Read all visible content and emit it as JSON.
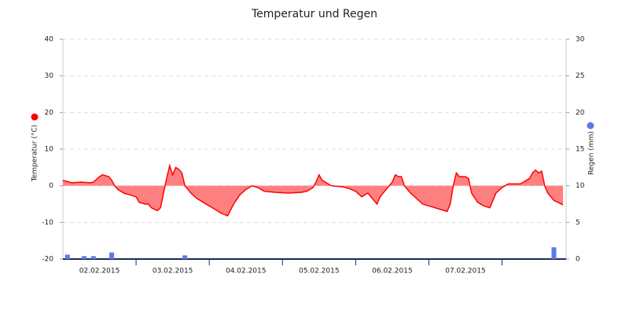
{
  "chart_data": {
    "type": "line",
    "title": "Temperatur und Regen",
    "xlim": [
      0,
      165
    ],
    "xticks": [
      {
        "value": 12,
        "label": "02.02.2015"
      },
      {
        "value": 36,
        "label": "03.02.2015"
      },
      {
        "value": 60,
        "label": "04.02.2015"
      },
      {
        "value": 84,
        "label": "05.02.2015"
      },
      {
        "value": 108,
        "label": "06.02.2015"
      },
      {
        "value": 132,
        "label": "07.02.2015"
      }
    ],
    "ylim": [
      -20,
      40
    ],
    "yticks": [
      -20,
      -10,
      0,
      10,
      20,
      30,
      40
    ],
    "y2lim": [
      0,
      30
    ],
    "y2ticks": [
      0,
      5,
      10,
      15,
      20,
      25,
      30
    ],
    "grid": true,
    "series": [
      {
        "name": "Temperatur (°C)",
        "type": "area",
        "color": "#ff0000",
        "fill": "#ff8080",
        "x": [
          0,
          3,
          6,
          9,
          10,
          12,
          13,
          15,
          16,
          17,
          18,
          20,
          22,
          24,
          25,
          27,
          28,
          29,
          31,
          32,
          33,
          34,
          35,
          36,
          37,
          38,
          39,
          40,
          42,
          44,
          46,
          48,
          50,
          52,
          54,
          56,
          58,
          60,
          62,
          64,
          66,
          70,
          74,
          78,
          80,
          82,
          83,
          84,
          85,
          86,
          88,
          92,
          94,
          96,
          98,
          100,
          102,
          103,
          104,
          106,
          108,
          109,
          110,
          111,
          112,
          114,
          116,
          118,
          120,
          122,
          124,
          126,
          127,
          128,
          129,
          130,
          132,
          133,
          134,
          136,
          138,
          140,
          142,
          144,
          146,
          148,
          150,
          152,
          153,
          154,
          155,
          156,
          157,
          158,
          159,
          161,
          164
        ],
        "values": [
          1.5,
          0.8,
          1,
          0.8,
          1,
          2.5,
          3,
          2.5,
          1.5,
          0,
          -1,
          -2,
          -2.5,
          -3,
          -4.5,
          -5,
          -5,
          -6,
          -6.8,
          -6,
          -2,
          2,
          5.5,
          3,
          5,
          4.5,
          3.5,
          0,
          -2,
          -3.5,
          -4.5,
          -5.5,
          -6.5,
          -7.5,
          -8.2,
          -5,
          -2.5,
          -1,
          0,
          -0.5,
          -1.5,
          -1.8,
          -2,
          -1.8,
          -1.5,
          -0.5,
          1,
          3,
          1.5,
          1,
          0,
          -0.3,
          -0.8,
          -1.5,
          -3,
          -2,
          -4,
          -5,
          -3,
          -1,
          1,
          3,
          2.5,
          2.5,
          0,
          -2,
          -3.5,
          -5,
          -5.5,
          -6,
          -6.5,
          -7,
          -5,
          0,
          3.5,
          2.5,
          2.5,
          2,
          -2,
          -4.5,
          -5.5,
          -6,
          -2,
          -0.5,
          0.5,
          0.5,
          0.5,
          1.5,
          2,
          3.5,
          4.3,
          3.5,
          4,
          0,
          -2,
          -4,
          -5.2
        ]
      },
      {
        "name": "Regen (mm)",
        "type": "bar",
        "axis": "y2",
        "color": "#5b7be8",
        "x": [
          1.5,
          7,
          10,
          16,
          40,
          161
        ],
        "values": [
          0.6,
          0.4,
          0.4,
          0.9,
          0.5,
          1.6
        ]
      }
    ]
  }
}
